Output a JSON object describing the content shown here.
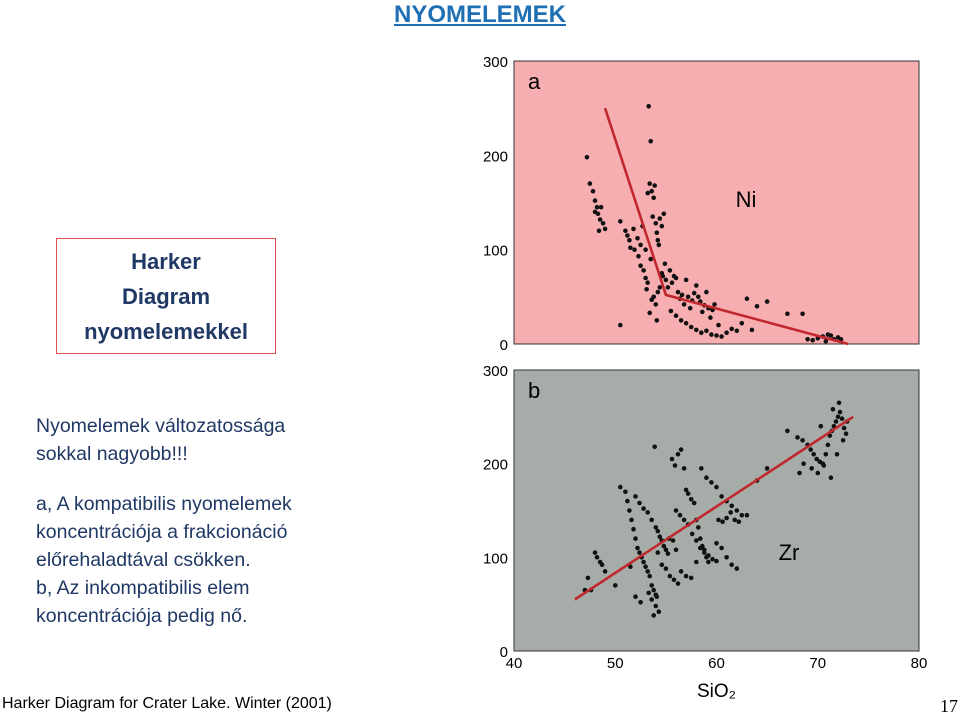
{
  "slide": {
    "title": "NYOMELEMEK",
    "box_lines": [
      "Harker",
      "Diagram",
      "nyomelemekkel"
    ],
    "text_block1": [
      "Nyomelemek változatossága",
      "sokkal nagyobb!!!"
    ],
    "text_block2": [
      "a, A kompatibilis nyomelemek",
      "koncentrációja a frakcionáció",
      "előrehaladtával csökken.",
      "b, Az inkompatibilis elem",
      "koncentrációja pedig nő."
    ],
    "caption": "Harker Diagram for Crater Lake. Winter (2001)",
    "page_number": "17"
  },
  "chart_data": [
    {
      "type": "scatter",
      "panel_label": "a",
      "element_label": "Ni",
      "xlim": [
        40,
        80
      ],
      "ylim": [
        0,
        300
      ],
      "yticks": [
        "0",
        "100",
        "200",
        "300"
      ],
      "background": "#f7aeb1",
      "point_color": "#111111",
      "trend_color": "#c0282d",
      "trend_line": [
        [
          49,
          250
        ],
        [
          55,
          52
        ],
        [
          73,
          0
        ]
      ],
      "points": [
        [
          47.2,
          198
        ],
        [
          47.5,
          170
        ],
        [
          47.8,
          162
        ],
        [
          48.0,
          152
        ],
        [
          48.2,
          145
        ],
        [
          48.3,
          138
        ],
        [
          48.5,
          132
        ],
        [
          48.6,
          145
        ],
        [
          48.8,
          128
        ],
        [
          49.0,
          122
        ],
        [
          48.0,
          140
        ],
        [
          48.4,
          120
        ],
        [
          50.5,
          130
        ],
        [
          51.0,
          120
        ],
        [
          51.2,
          115
        ],
        [
          51.4,
          110
        ],
        [
          51.5,
          102
        ],
        [
          51.8,
          122
        ],
        [
          51.9,
          100
        ],
        [
          52.2,
          112
        ],
        [
          52.3,
          93
        ],
        [
          52.5,
          105
        ],
        [
          52.7,
          125
        ],
        [
          53.0,
          100
        ],
        [
          53.2,
          160
        ],
        [
          53.4,
          170
        ],
        [
          53.6,
          162
        ],
        [
          53.8,
          155
        ],
        [
          53.9,
          168
        ],
        [
          53.3,
          252
        ],
        [
          53.5,
          215
        ],
        [
          53.7,
          135
        ],
        [
          54.0,
          128
        ],
        [
          54.1,
          118
        ],
        [
          54.2,
          110
        ],
        [
          54.3,
          105
        ],
        [
          54.4,
          133
        ],
        [
          54.6,
          125
        ],
        [
          54.8,
          138
        ],
        [
          53.0,
          70
        ],
        [
          53.2,
          65
        ],
        [
          53.5,
          90
        ],
        [
          53.8,
          50
        ],
        [
          54.0,
          42
        ],
        [
          54.2,
          55
        ],
        [
          54.4,
          60
        ],
        [
          54.6,
          75
        ],
        [
          54.7,
          72
        ],
        [
          54.9,
          85
        ],
        [
          53.1,
          58
        ],
        [
          53.4,
          33
        ],
        [
          54.1,
          25
        ],
        [
          52.5,
          83
        ],
        [
          52.8,
          78
        ],
        [
          53.6,
          47
        ],
        [
          55.0,
          68
        ],
        [
          55.2,
          60
        ],
        [
          55.4,
          78
        ],
        [
          55.6,
          65
        ],
        [
          55.8,
          72
        ],
        [
          56.0,
          70
        ],
        [
          56.2,
          55
        ],
        [
          56.4,
          48
        ],
        [
          56.6,
          52
        ],
        [
          56.8,
          42
        ],
        [
          57.0,
          68
        ],
        [
          57.2,
          50
        ],
        [
          57.4,
          38
        ],
        [
          57.6,
          46
        ],
        [
          57.8,
          54
        ],
        [
          58.0,
          62
        ],
        [
          58.2,
          50
        ],
        [
          58.4,
          45
        ],
        [
          58.6,
          34
        ],
        [
          58.8,
          41
        ],
        [
          59.0,
          55
        ],
        [
          59.2,
          38
        ],
        [
          59.4,
          28
        ],
        [
          59.6,
          36
        ],
        [
          59.8,
          42
        ],
        [
          55.5,
          35
        ],
        [
          56.0,
          30
        ],
        [
          56.5,
          25
        ],
        [
          57.0,
          22
        ],
        [
          57.5,
          18
        ],
        [
          58.0,
          15
        ],
        [
          58.5,
          12
        ],
        [
          59.0,
          14
        ],
        [
          59.5,
          10
        ],
        [
          60.0,
          9
        ],
        [
          60.5,
          8
        ],
        [
          61.0,
          12
        ],
        [
          61.5,
          16
        ],
        [
          62.0,
          14
        ],
        [
          62.5,
          22
        ],
        [
          63.0,
          48
        ],
        [
          63.5,
          15
        ],
        [
          64.0,
          40
        ],
        [
          65.0,
          45
        ],
        [
          67.0,
          32
        ],
        [
          68.5,
          32
        ],
        [
          69.0,
          5
        ],
        [
          69.5,
          4
        ],
        [
          70.0,
          6
        ],
        [
          70.5,
          8
        ],
        [
          70.8,
          3
        ],
        [
          71.0,
          10
        ],
        [
          71.3,
          9
        ],
        [
          71.6,
          5
        ],
        [
          72.0,
          7
        ],
        [
          72.3,
          5
        ],
        [
          50.5,
          20
        ],
        [
          60.2,
          20
        ]
      ]
    },
    {
      "type": "scatter",
      "panel_label": "b",
      "element_label": "Zr",
      "xlabel": "SiO₂",
      "xlim": [
        40,
        80
      ],
      "ylim": [
        0,
        300
      ],
      "xticks": [
        "40",
        "50",
        "60",
        "70",
        "80"
      ],
      "yticks": [
        "0",
        "100",
        "200",
        "300"
      ],
      "background": "#a6ada8",
      "point_color": "#111111",
      "trend_color": "#c0282d",
      "trend_line": [
        [
          46,
          55
        ],
        [
          73.5,
          250
        ]
      ],
      "points": [
        [
          47.3,
          78
        ],
        [
          47.6,
          65
        ],
        [
          48.0,
          105
        ],
        [
          48.2,
          100
        ],
        [
          48.5,
          95
        ],
        [
          48.7,
          92
        ],
        [
          49.0,
          85
        ],
        [
          50.5,
          175
        ],
        [
          51.0,
          170
        ],
        [
          51.2,
          160
        ],
        [
          51.4,
          150
        ],
        [
          51.6,
          140
        ],
        [
          51.8,
          130
        ],
        [
          52.0,
          120
        ],
        [
          52.2,
          110
        ],
        [
          52.4,
          105
        ],
        [
          52.6,
          100
        ],
        [
          52.8,
          95
        ],
        [
          53.0,
          90
        ],
        [
          53.2,
          85
        ],
        [
          53.4,
          80
        ],
        [
          53.6,
          70
        ],
        [
          53.8,
          65
        ],
        [
          54.0,
          60
        ],
        [
          52.0,
          165
        ],
        [
          52.4,
          158
        ],
        [
          52.8,
          152
        ],
        [
          53.2,
          148
        ],
        [
          53.6,
          140
        ],
        [
          54.0,
          132
        ],
        [
          54.2,
          128
        ],
        [
          54.4,
          122
        ],
        [
          54.6,
          118
        ],
        [
          54.8,
          112
        ],
        [
          55.0,
          108
        ],
        [
          55.2,
          104
        ],
        [
          53.9,
          218
        ],
        [
          54.2,
          105
        ],
        [
          54.6,
          92
        ],
        [
          55.0,
          88
        ],
        [
          55.4,
          80
        ],
        [
          55.8,
          76
        ],
        [
          56.2,
          72
        ],
        [
          53.3,
          62
        ],
        [
          53.6,
          55
        ],
        [
          54.0,
          48
        ],
        [
          54.3,
          42
        ],
        [
          53.8,
          38
        ],
        [
          54.1,
          58
        ],
        [
          55.6,
          205
        ],
        [
          55.9,
          198
        ],
        [
          56.2,
          210
        ],
        [
          56.5,
          215
        ],
        [
          56.8,
          195
        ],
        [
          57.0,
          172
        ],
        [
          57.2,
          168
        ],
        [
          57.5,
          162
        ],
        [
          57.8,
          158
        ],
        [
          58.0,
          140
        ],
        [
          58.2,
          132
        ],
        [
          58.4,
          120
        ],
        [
          58.6,
          112
        ],
        [
          58.8,
          108
        ],
        [
          59.0,
          100
        ],
        [
          59.2,
          95
        ],
        [
          56.0,
          150
        ],
        [
          56.4,
          145
        ],
        [
          56.8,
          140
        ],
        [
          57.2,
          135
        ],
        [
          57.6,
          125
        ],
        [
          58.0,
          118
        ],
        [
          58.4,
          110
        ],
        [
          58.8,
          105
        ],
        [
          59.2,
          102
        ],
        [
          59.6,
          98
        ],
        [
          60.0,
          96
        ],
        [
          56.5,
          85
        ],
        [
          57.0,
          80
        ],
        [
          57.5,
          78
        ],
        [
          58.0,
          95
        ],
        [
          58.5,
          195
        ],
        [
          59.0,
          185
        ],
        [
          59.5,
          180
        ],
        [
          60.0,
          175
        ],
        [
          60.5,
          165
        ],
        [
          61.0,
          160
        ],
        [
          61.5,
          155
        ],
        [
          62.0,
          150
        ],
        [
          62.5,
          145
        ],
        [
          63.0,
          145
        ],
        [
          60.2,
          140
        ],
        [
          60.6,
          138
        ],
        [
          61.0,
          142
        ],
        [
          61.4,
          148
        ],
        [
          61.8,
          140
        ],
        [
          62.2,
          138
        ],
        [
          60.0,
          115
        ],
        [
          60.5,
          110
        ],
        [
          61.0,
          100
        ],
        [
          61.5,
          92
        ],
        [
          62.0,
          88
        ],
        [
          55.3,
          120
        ],
        [
          55.7,
          118
        ],
        [
          56.0,
          108
        ],
        [
          47.0,
          65
        ],
        [
          50.0,
          70
        ],
        [
          51.5,
          90
        ],
        [
          52.0,
          58
        ],
        [
          52.5,
          52
        ],
        [
          64.0,
          182
        ],
        [
          65.0,
          195
        ],
        [
          67.0,
          235
        ],
        [
          68.0,
          228
        ],
        [
          68.5,
          225
        ],
        [
          69.0,
          220
        ],
        [
          69.3,
          215
        ],
        [
          69.6,
          210
        ],
        [
          69.9,
          205
        ],
        [
          70.2,
          202
        ],
        [
          70.5,
          200
        ],
        [
          70.8,
          210
        ],
        [
          71.0,
          220
        ],
        [
          71.2,
          230
        ],
        [
          71.4,
          235
        ],
        [
          71.6,
          240
        ],
        [
          71.8,
          245
        ],
        [
          72.0,
          250
        ],
        [
          72.2,
          255
        ],
        [
          72.4,
          248
        ],
        [
          72.6,
          238
        ],
        [
          72.8,
          232
        ],
        [
          68.2,
          190
        ],
        [
          68.6,
          200
        ],
        [
          69.4,
          195
        ],
        [
          70.0,
          190
        ],
        [
          70.6,
          198
        ],
        [
          71.3,
          185
        ],
        [
          71.9,
          210
        ],
        [
          72.5,
          225
        ],
        [
          70.3,
          240
        ],
        [
          71.5,
          258
        ],
        [
          72.1,
          265
        ],
        [
          72.9,
          245
        ]
      ]
    }
  ]
}
